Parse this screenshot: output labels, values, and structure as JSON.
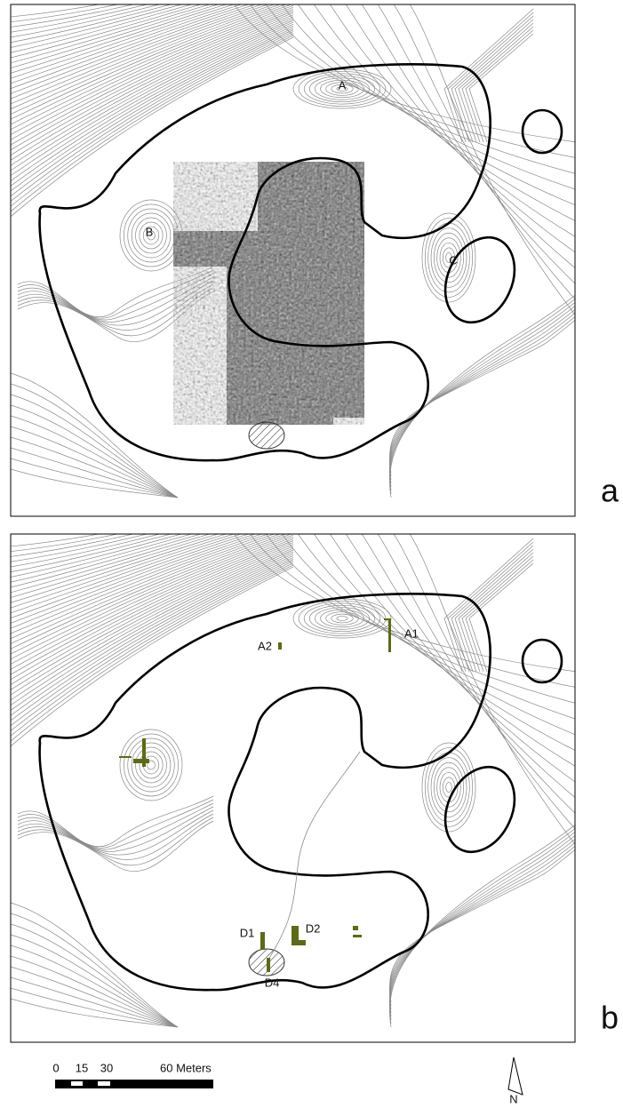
{
  "panels": [
    {
      "letter": "a",
      "labels": [
        "A",
        "B",
        "C"
      ]
    },
    {
      "letter": "b",
      "labels": [
        "A1",
        "A2",
        "D1",
        "D2",
        "D4"
      ]
    }
  ],
  "scale_bar": {
    "ticks": [
      "0",
      "15",
      "30",
      "60 Meters"
    ]
  },
  "north_arrow": "N"
}
